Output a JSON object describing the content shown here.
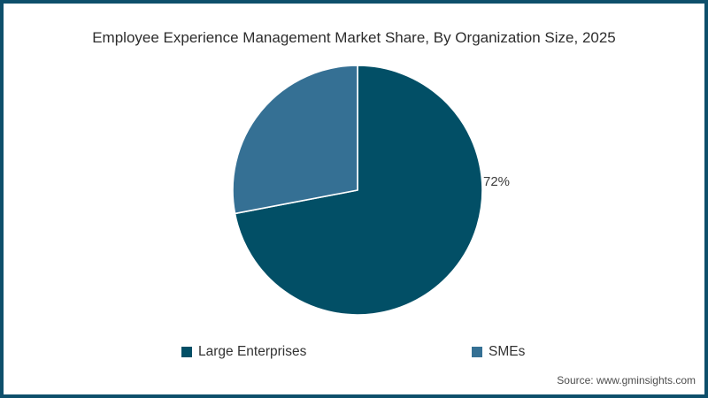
{
  "title": "Employee Experience Management Market Share, By Organization Size, 2025",
  "source_text": "Source: www.gminsights.com",
  "frame": {
    "border_color": "#0e4f6b",
    "background_color": "#ffffff"
  },
  "chart_data": {
    "type": "pie",
    "title": "Employee Experience Management Market Share, By Organization Size, 2025",
    "series": [
      {
        "name": "Large Enterprises",
        "value": 72,
        "color": "#024f66",
        "data_label": "72%"
      },
      {
        "name": "SMEs",
        "value": 28,
        "color": "#357094",
        "data_label": ""
      }
    ],
    "start_angle_deg": 0,
    "direction": "clockwise",
    "slice_border_color": "#ffffff",
    "legend_position": "bottom",
    "shown_labels": [
      "72%"
    ]
  }
}
